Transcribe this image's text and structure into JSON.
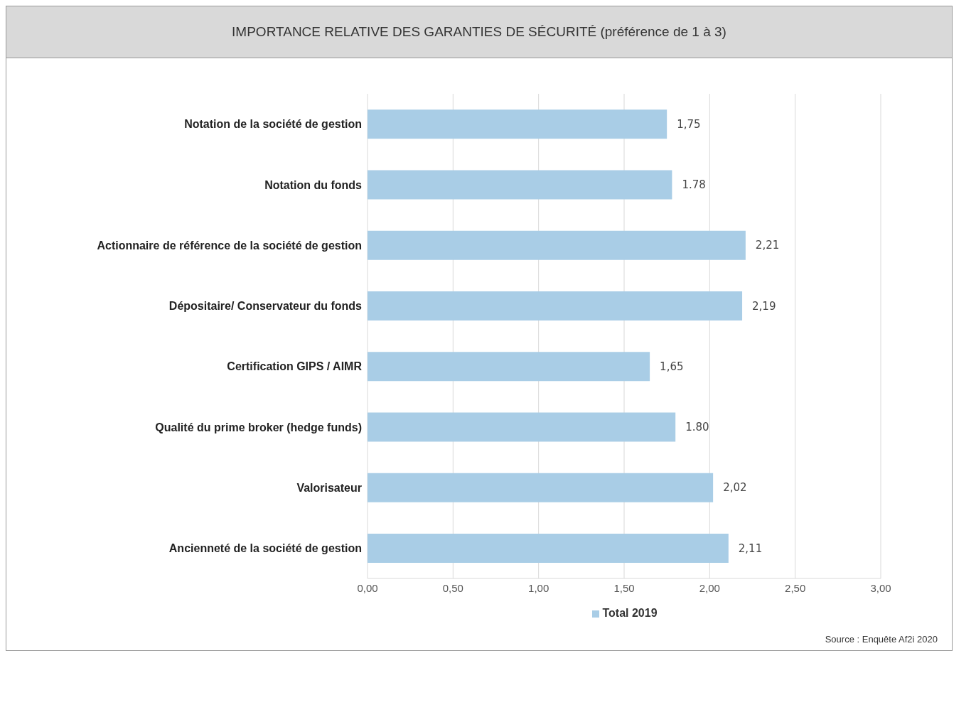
{
  "chart_data": {
    "type": "bar",
    "orientation": "horizontal",
    "title": "IMPORTANCE RELATIVE DES GARANTIES DE SÉCURITÉ (préférence de 1 à 3)",
    "categories": [
      "Notation de la société de gestion",
      "Notation du fonds",
      "Actionnaire de référence de la société de gestion",
      "Dépositaire/ Conservateur du fonds",
      "Certification GIPS / AIMR",
      "Qualité du prime broker (hedge funds)",
      "Valorisateur",
      "Ancienneté de la société de gestion"
    ],
    "series": [
      {
        "name": "Total 2019",
        "color": "#a9cde6",
        "values": [
          1.75,
          1.78,
          2.21,
          2.19,
          1.65,
          1.8,
          2.02,
          2.11
        ],
        "value_labels": [
          "1,75",
          "1.78",
          "2,21",
          "2,19",
          "1,65",
          "1.80",
          "2,02",
          "2,11"
        ]
      }
    ],
    "xlim": [
      0,
      3
    ],
    "xticks": [
      {
        "value": 0,
        "label": "0,00"
      },
      {
        "value": 0.5,
        "label": "0,50"
      },
      {
        "value": 1,
        "label": "1,00"
      },
      {
        "value": 1.5,
        "label": "1,50"
      },
      {
        "value": 2,
        "label": "2,00"
      },
      {
        "value": 2.5,
        "label": "2,50"
      },
      {
        "value": 3,
        "label": "3,00"
      }
    ],
    "grid": "x",
    "legend": "bottom",
    "annotations": [
      "Source : Enquête Af2i 2020"
    ]
  }
}
